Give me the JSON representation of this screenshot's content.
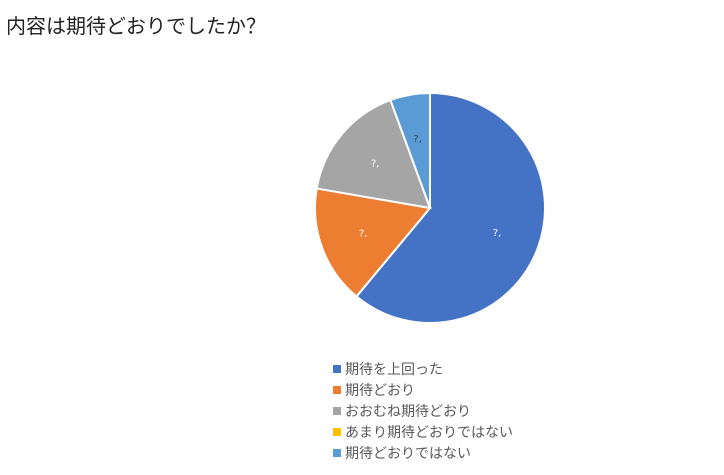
{
  "chart_data": {
    "type": "pie",
    "title": "内容は期待どおりでしたか？",
    "categories": [
      "期待を上回った",
      "期待どおり",
      "おおむね期待どおり",
      "あまり期待どおりではない",
      "期待どおりではない"
    ],
    "values": [
      61.1,
      16.7,
      16.7,
      0,
      5.6
    ],
    "colors": [
      "#4472C4",
      "#ED7D31",
      "#A5A5A5",
      "#FFC000",
      "#5B9BD5"
    ],
    "data_labels": [
      "?,",
      "?,",
      "?,",
      "?,",
      "?,"
    ],
    "legend_position": "bottom"
  }
}
